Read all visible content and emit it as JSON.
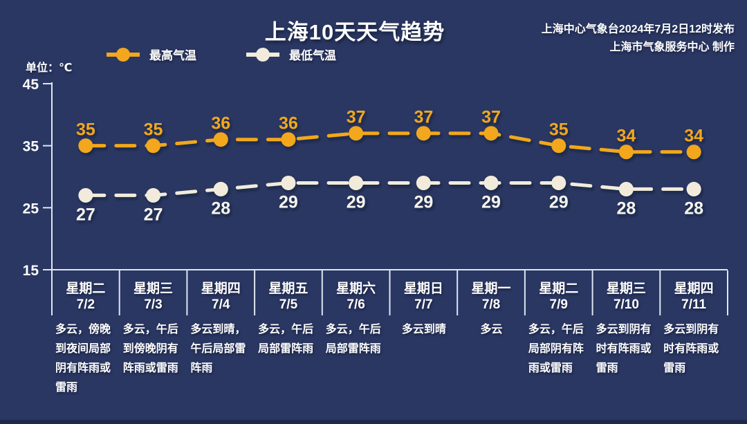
{
  "title": "上海10天天气趋势",
  "source": {
    "line1": "上海中心气象台2024年7月2日12时发布",
    "line2": "上海市气象服务中心 制作"
  },
  "unit_label": "单位：℃",
  "colors": {
    "background": "#2A3762",
    "high": "#F2A71F",
    "low": "#F2EBDC",
    "low_label": "#F6F4EE",
    "axis": "#DFE5F2",
    "text": "#FFFFFF"
  },
  "legend": [
    {
      "name": "high",
      "label": "最高气温",
      "color": "#F2A71F"
    },
    {
      "name": "low",
      "label": "最低气温",
      "color": "#F2EBDC"
    }
  ],
  "chart_data": {
    "type": "line",
    "title": "上海10天天气趋势",
    "categories": [
      "7/2",
      "7/3",
      "7/4",
      "7/5",
      "7/6",
      "7/7",
      "7/8",
      "7/9",
      "7/10",
      "7/11"
    ],
    "weekdays": [
      "星期二",
      "星期三",
      "星期四",
      "星期五",
      "星期六",
      "星期日",
      "星期一",
      "星期二",
      "星期三",
      "星期四"
    ],
    "series": [
      {
        "name": "最高气温",
        "values": [
          35,
          35,
          36,
          36,
          37,
          37,
          37,
          35,
          34,
          34
        ],
        "color": "#F2A71F",
        "style": "dashed",
        "marker": "circle"
      },
      {
        "name": "最低气温",
        "values": [
          27,
          27,
          28,
          29,
          29,
          29,
          29,
          29,
          28,
          28
        ],
        "color": "#F2EBDC",
        "style": "dashed",
        "marker": "circle"
      }
    ],
    "ylabel": "单位：℃",
    "yticks": [
      45,
      35,
      25,
      15
    ],
    "ylim": [
      15,
      45
    ],
    "grid": false,
    "legend_position": "top-left",
    "data_labels": true
  },
  "days": [
    {
      "weekday": "星期二",
      "date": "7/2",
      "description": "多云，傍晚到夜间局部阴有阵雨或雷雨"
    },
    {
      "weekday": "星期三",
      "date": "7/3",
      "description": "多云，午后到傍晚阴有阵雨或雷雨"
    },
    {
      "weekday": "星期四",
      "date": "7/4",
      "description": "多云到晴，午后局部雷阵雨"
    },
    {
      "weekday": "星期五",
      "date": "7/5",
      "description": "多云，午后局部雷阵雨"
    },
    {
      "weekday": "星期六",
      "date": "7/6",
      "description": "多云，午后局部雷阵雨"
    },
    {
      "weekday": "星期日",
      "date": "7/7",
      "description": "多云到晴"
    },
    {
      "weekday": "星期一",
      "date": "7/8",
      "description": "多云"
    },
    {
      "weekday": "星期二",
      "date": "7/9",
      "description": "多云，午后局部阴有阵雨或雷雨"
    },
    {
      "weekday": "星期三",
      "date": "7/10",
      "description": "多云到阴有时有阵雨或雷雨"
    },
    {
      "weekday": "星期四",
      "date": "7/11",
      "description": "多云到阴有时有阵雨或雷雨"
    }
  ]
}
